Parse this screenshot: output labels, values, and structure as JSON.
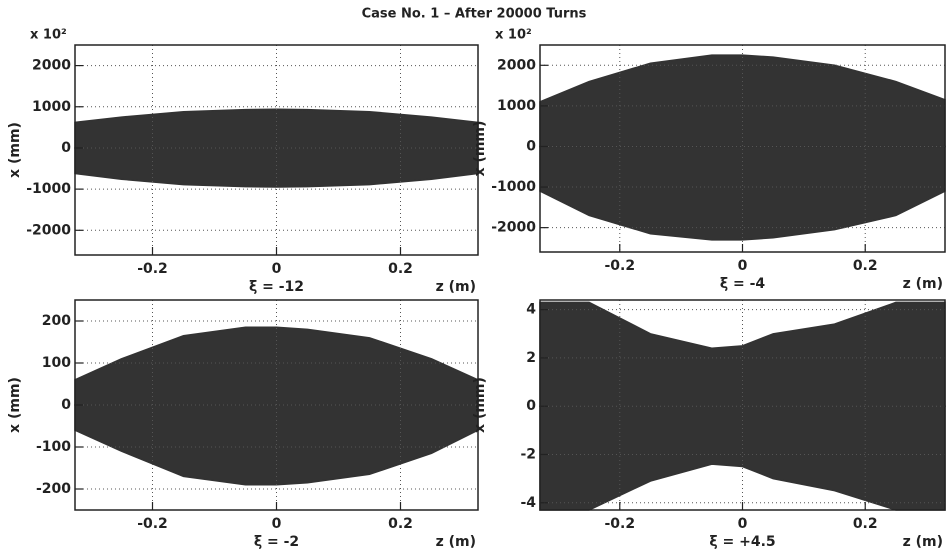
{
  "title": "Case No. 1  –  After 20000 Turns",
  "chart_data": [
    {
      "type": "band",
      "y_multiplier": "x 10²",
      "y_label": "x (mm)",
      "x_label": "z (m)",
      "annotation": "ξ = -12",
      "xlim": [
        -0.325,
        0.325
      ],
      "xticks": [
        -0.2,
        0,
        0.2
      ],
      "ylim": [
        -2600,
        2500
      ],
      "yticks": [
        -2000,
        -1000,
        0,
        1000,
        2000
      ],
      "grid": true,
      "x": [
        -0.325,
        -0.25,
        -0.15,
        -0.05,
        0,
        0.05,
        0.15,
        0.25,
        0.325
      ],
      "series": [
        {
          "color": "#333333",
          "values": [
            620,
            750,
            880,
            930,
            940,
            930,
            880,
            750,
            620
          ]
        },
        {
          "color": "#333333",
          "values": [
            -620,
            -760,
            -890,
            -940,
            -950,
            -940,
            -890,
            -760,
            -620
          ]
        }
      ]
    },
    {
      "type": "band",
      "y_multiplier": "x 10²",
      "y_label": "x (mm)",
      "x_label": "z (m)",
      "annotation": "ξ = -4",
      "xlim": [
        -0.33,
        0.33
      ],
      "xticks": [
        -0.2,
        0,
        0.2
      ],
      "ylim": [
        -2600,
        2500
      ],
      "yticks": [
        -2000,
        -1000,
        0,
        1000,
        2000
      ],
      "grid": true,
      "x": [
        -0.33,
        -0.25,
        -0.15,
        -0.05,
        0,
        0.05,
        0.15,
        0.25,
        0.33
      ],
      "series": [
        {
          "color": "#333333",
          "values": [
            1100,
            1600,
            2050,
            2250,
            2250,
            2200,
            2000,
            1600,
            1150
          ]
        },
        {
          "color": "#333333",
          "values": [
            -1100,
            -1700,
            -2150,
            -2300,
            -2300,
            -2250,
            -2050,
            -1700,
            -1100
          ]
        }
      ]
    },
    {
      "type": "band",
      "y_label": "x (mm)",
      "x_label": "z (m)",
      "annotation": "ξ = -2",
      "xlim": [
        -0.325,
        0.325
      ],
      "xticks": [
        -0.2,
        0,
        0.2
      ],
      "ylim": [
        -250,
        250
      ],
      "yticks": [
        -200,
        -100,
        0,
        100,
        200
      ],
      "grid": true,
      "x": [
        -0.325,
        -0.25,
        -0.15,
        -0.05,
        0,
        0.05,
        0.15,
        0.25,
        0.325
      ],
      "series": [
        {
          "color": "#333333",
          "values": [
            60,
            110,
            165,
            185,
            185,
            180,
            160,
            110,
            60
          ]
        },
        {
          "color": "#333333",
          "values": [
            -60,
            -110,
            -170,
            -190,
            -190,
            -185,
            -165,
            -115,
            -60
          ]
        }
      ]
    },
    {
      "type": "band",
      "y_label": "x (mm)",
      "x_label": "z (m)",
      "annotation": "ξ = +4.5",
      "xlim": [
        -0.33,
        0.33
      ],
      "xticks": [
        -0.2,
        0,
        0.2
      ],
      "ylim": [
        -4.3,
        4.4
      ],
      "yticks": [
        -4,
        -2,
        0,
        2,
        4
      ],
      "grid": true,
      "x": [
        -0.33,
        -0.25,
        -0.15,
        -0.05,
        0,
        0.05,
        0.15,
        0.25,
        0.33
      ],
      "series": [
        {
          "color": "#333333",
          "values": [
            4.3,
            4.3,
            3,
            2.4,
            2.5,
            3,
            3.4,
            4.3,
            4.3
          ]
        },
        {
          "color": "#333333",
          "values": [
            -4.3,
            -4.3,
            -3.1,
            -2.4,
            -2.5,
            -3,
            -3.5,
            -4.3,
            -4.3
          ]
        }
      ]
    }
  ]
}
